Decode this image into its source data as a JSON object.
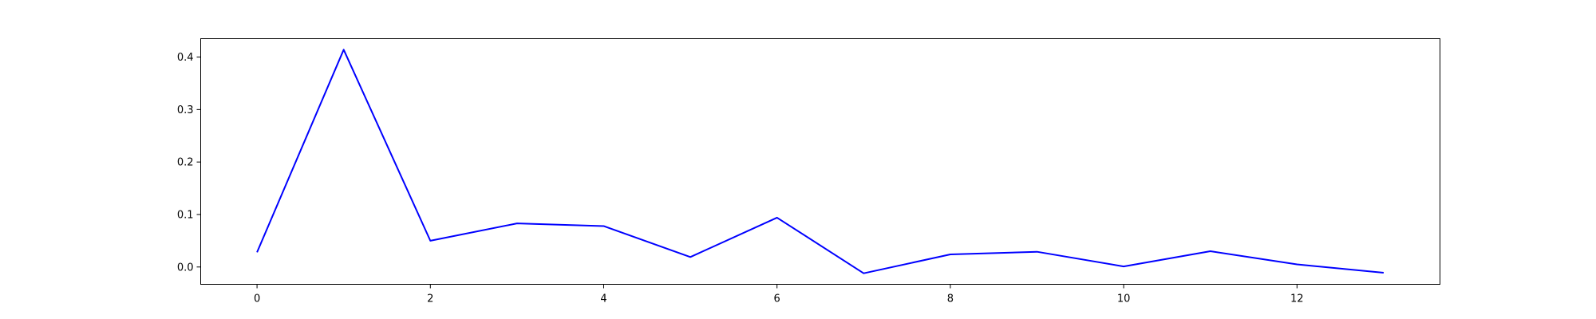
{
  "chart_data": {
    "type": "line",
    "title": "",
    "xlabel": "",
    "ylabel": "",
    "grid": false,
    "x": [
      0,
      1,
      2,
      3,
      4,
      5,
      6,
      7,
      8,
      9,
      10,
      11,
      12,
      13
    ],
    "series": [
      {
        "values": [
          0.028,
          0.414,
          0.05,
          0.083,
          0.078,
          0.019,
          0.094,
          -0.012,
          0.024,
          0.029,
          0.001,
          0.03,
          0.005,
          -0.011
        ],
        "color": "#0000ff"
      }
    ],
    "xlim": [
      -0.65,
      13.65
    ],
    "ylim": [
      -0.033,
      0.435
    ],
    "xticks": [
      {
        "value": 0,
        "label": "0"
      },
      {
        "value": 2,
        "label": "2"
      },
      {
        "value": 4,
        "label": "4"
      },
      {
        "value": 6,
        "label": "6"
      },
      {
        "value": 8,
        "label": "8"
      },
      {
        "value": 10,
        "label": "10"
      },
      {
        "value": 12,
        "label": "12"
      }
    ],
    "yticks": [
      {
        "value": 0.0,
        "label": "0.0"
      },
      {
        "value": 0.1,
        "label": "0.1"
      },
      {
        "value": 0.2,
        "label": "0.2"
      },
      {
        "value": 0.3,
        "label": "0.3"
      },
      {
        "value": 0.4,
        "label": "0.4"
      }
    ]
  }
}
